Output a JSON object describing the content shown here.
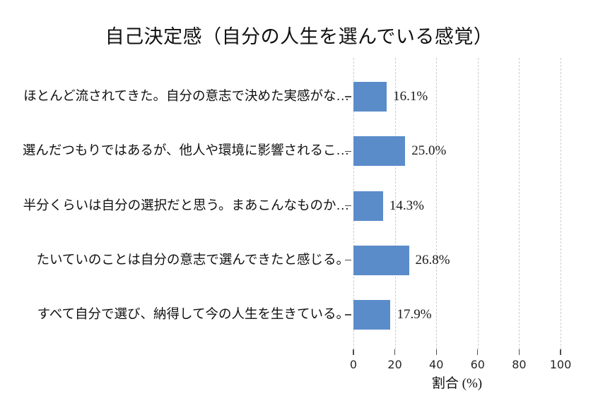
{
  "chart_data": {
    "type": "bar",
    "orientation": "horizontal",
    "title": "自己決定感（自分の人生を選んでいる感覚）",
    "categories": [
      "ほとんど流されてきた。自分の意志で決めた実感がな…",
      "選んだつもりではあるが、他人や環境に影響されるこ…",
      "半分くらいは自分の選択だと思う。まあこんなものか…",
      "たいていのことは自分の意志で選んできたと感じる。",
      "すべて自分で選び、納得して今の人生を生きている。"
    ],
    "values": [
      16.1,
      25.0,
      14.3,
      26.8,
      17.9
    ],
    "value_labels": [
      "16.1%",
      "25.0%",
      "14.3%",
      "26.8%",
      "17.9%"
    ],
    "xlabel": "割合 (%)",
    "xlim": [
      0,
      100
    ],
    "xticks": [
      0,
      20,
      40,
      60,
      80,
      100
    ],
    "grid": "vertical-dashed",
    "legend": false,
    "colors": {
      "bar": "#5b8cca",
      "gridline": "#cccccc",
      "tick": "#4d4d4d",
      "text": "#111111"
    }
  }
}
